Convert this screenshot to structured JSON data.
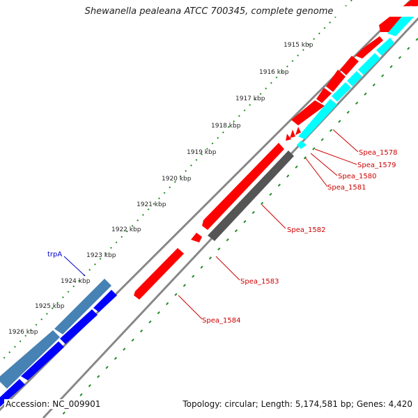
{
  "title": "Shewanella pealeana ATCC 700345, complete genome",
  "footer": {
    "accession": "Accession: NC_009901",
    "summary": "Topology: circular; Length: 5,174,581 bp; Genes: 4,420"
  },
  "colors": {
    "backbone": "#888888",
    "forward_cds": "#ff0000",
    "reverse_cds": "#00ffff",
    "other_cds": "#555555",
    "blue_cds": "#0000ff",
    "steel_cds": "#4682b4",
    "label_red": "#cc0000",
    "label_blue": "#0000cc",
    "ticks": "#228b22"
  },
  "scale_labels": [
    "1915 kbp",
    "1916 kbp",
    "1917 kbp",
    "1918 kbp",
    "1919 kbp",
    "1920 kbp",
    "1921 kbp",
    "1922 kbp",
    "1923 kbp",
    "1924 kbp",
    "1925 kbp",
    "1926 kbp"
  ],
  "gene_labels": [
    {
      "name": "Spea_1578",
      "color": "red"
    },
    {
      "name": "Spea_1579",
      "color": "red"
    },
    {
      "name": "Spea_1580",
      "color": "red"
    },
    {
      "name": "Spea_1581",
      "color": "red"
    },
    {
      "name": "Spea_1582",
      "color": "red"
    },
    {
      "name": "Spea_1583",
      "color": "red"
    },
    {
      "name": "Spea_1584",
      "color": "red"
    },
    {
      "name": "trpA",
      "color": "blue"
    }
  ]
}
